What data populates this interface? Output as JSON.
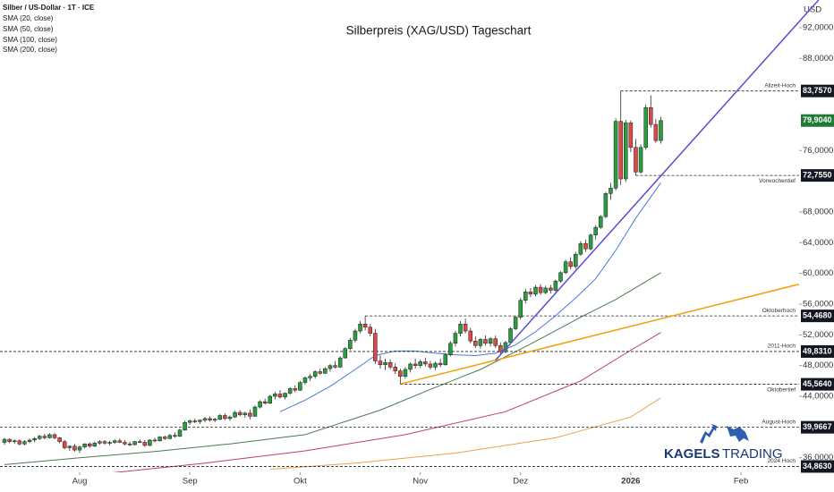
{
  "chart_data": {
    "type": "candlestick",
    "header": "Silber / US-Dollar · 1T · ICE",
    "title": "Silberpreis (XAG/USD) Tageschart",
    "currency": "USD",
    "logo": [
      "KAGELS",
      "TRADING"
    ],
    "colors": {
      "up": "#2a9d3f",
      "down": "#e04848",
      "wick": "#2b2b2b"
    },
    "xlim": [
      -0.9,
      158.6
    ],
    "ylim": [
      34.1,
      95.6
    ],
    "grid": false,
    "xticks": [
      {
        "value": 15,
        "label": "Aug"
      },
      {
        "value": 37,
        "label": "Sep"
      },
      {
        "value": 59,
        "label": "Okt"
      },
      {
        "value": 83,
        "label": "Nov"
      },
      {
        "value": 103,
        "label": "Dez"
      },
      {
        "value": 125,
        "label": "2026"
      },
      {
        "value": 147,
        "label": "Feb"
      }
    ],
    "yticks": [
      {
        "value": 92,
        "label": "92,0000"
      },
      {
        "value": 88,
        "label": "88,0000"
      },
      {
        "value": 76,
        "label": "76,0000"
      },
      {
        "value": 68,
        "label": "68,0000"
      },
      {
        "value": 64,
        "label": "64,0000"
      },
      {
        "value": 60,
        "label": "60,0000"
      },
      {
        "value": 56,
        "label": "56,0000"
      },
      {
        "value": 52,
        "label": "52,0000"
      },
      {
        "value": 48,
        "label": "48,0000"
      },
      {
        "value": 44,
        "label": "44,0000"
      },
      {
        "value": 36,
        "label": "36,0000"
      }
    ],
    "ohlc": [
      [
        38.0,
        38.6,
        37.7,
        38.4
      ],
      [
        38.4,
        38.5,
        37.9,
        38.1
      ],
      [
        38.1,
        38.4,
        37.8,
        38.2
      ],
      [
        38.2,
        38.4,
        37.6,
        37.8
      ],
      [
        37.8,
        38.3,
        37.6,
        38.1
      ],
      [
        38.1,
        38.5,
        37.9,
        38.3
      ],
      [
        38.3,
        38.7,
        38.0,
        38.5
      ],
      [
        38.5,
        39.0,
        38.3,
        38.8
      ],
      [
        38.8,
        39.1,
        38.4,
        38.6
      ],
      [
        38.6,
        39.2,
        38.5,
        39.0
      ],
      [
        39.0,
        39.2,
        38.4,
        38.6
      ],
      [
        38.6,
        38.7,
        37.9,
        38.1
      ],
      [
        38.1,
        38.3,
        37.1,
        37.3
      ],
      [
        37.3,
        37.6,
        36.9,
        37.5
      ],
      [
        37.5,
        37.8,
        36.8,
        37.0
      ],
      [
        37.0,
        37.6,
        36.6,
        37.4
      ],
      [
        37.4,
        37.9,
        37.2,
        37.8
      ],
      [
        37.8,
        38.0,
        37.3,
        37.5
      ],
      [
        37.5,
        38.1,
        37.4,
        37.9
      ],
      [
        37.9,
        38.3,
        37.7,
        38.1
      ],
      [
        38.1,
        38.3,
        37.7,
        37.9
      ],
      [
        37.9,
        38.2,
        37.6,
        38.0
      ],
      [
        38.0,
        38.4,
        37.8,
        38.2
      ],
      [
        38.2,
        38.5,
        37.9,
        38.0
      ],
      [
        38.0,
        38.3,
        37.6,
        37.8
      ],
      [
        37.8,
        38.1,
        37.5,
        37.7
      ],
      [
        37.7,
        38.2,
        37.6,
        38.1
      ],
      [
        38.1,
        38.4,
        37.9,
        38.0
      ],
      [
        38.0,
        38.3,
        37.4,
        37.6
      ],
      [
        37.6,
        38.4,
        37.5,
        38.3
      ],
      [
        38.3,
        38.6,
        38.0,
        38.2
      ],
      [
        38.2,
        38.8,
        38.1,
        38.7
      ],
      [
        38.7,
        38.9,
        38.3,
        38.5
      ],
      [
        38.5,
        39.1,
        38.4,
        38.9
      ],
      [
        38.9,
        39.3,
        38.6,
        38.8
      ],
      [
        38.8,
        39.8,
        38.7,
        39.6
      ],
      [
        39.6,
        40.8,
        39.5,
        40.6
      ],
      [
        40.6,
        41.0,
        40.3,
        40.8
      ],
      [
        40.8,
        41.1,
        40.5,
        40.7
      ],
      [
        40.7,
        41.0,
        40.4,
        40.9
      ],
      [
        40.9,
        41.3,
        40.6,
        41.1
      ],
      [
        41.1,
        41.4,
        40.7,
        40.9
      ],
      [
        40.9,
        41.2,
        40.6,
        41.0
      ],
      [
        41.0,
        41.7,
        40.9,
        41.5
      ],
      [
        41.5,
        41.8,
        40.9,
        41.1
      ],
      [
        41.1,
        41.5,
        40.8,
        41.3
      ],
      [
        41.3,
        42.1,
        41.2,
        41.9
      ],
      [
        41.9,
        42.2,
        41.4,
        41.6
      ],
      [
        41.6,
        42.0,
        41.2,
        41.8
      ],
      [
        41.8,
        42.3,
        41.0,
        41.4
      ],
      [
        41.4,
        42.8,
        41.3,
        42.6
      ],
      [
        42.6,
        43.5,
        42.4,
        43.3
      ],
      [
        43.3,
        43.7,
        42.9,
        43.1
      ],
      [
        43.1,
        44.2,
        43.0,
        44.0
      ],
      [
        44.0,
        44.6,
        43.6,
        44.3
      ],
      [
        44.3,
        44.8,
        43.7,
        43.9
      ],
      [
        43.9,
        44.5,
        43.6,
        44.4
      ],
      [
        44.4,
        45.2,
        44.2,
        45.0
      ],
      [
        45.0,
        45.4,
        44.5,
        44.8
      ],
      [
        44.8,
        46.0,
        44.7,
        45.8
      ],
      [
        45.8,
        46.6,
        45.5,
        46.4
      ],
      [
        46.4,
        46.9,
        46.0,
        46.6
      ],
      [
        46.6,
        47.4,
        46.3,
        47.2
      ],
      [
        47.2,
        47.6,
        46.8,
        47.0
      ],
      [
        47.0,
        47.8,
        46.9,
        47.6
      ],
      [
        47.6,
        48.2,
        47.2,
        48.0
      ],
      [
        48.0,
        48.6,
        47.6,
        47.8
      ],
      [
        47.8,
        49.2,
        47.7,
        49.0
      ],
      [
        49.0,
        50.4,
        48.9,
        50.2
      ],
      [
        50.2,
        51.6,
        50.0,
        51.3
      ],
      [
        51.3,
        52.8,
        51.0,
        52.5
      ],
      [
        52.5,
        53.8,
        52.2,
        53.4
      ],
      [
        53.4,
        54.468,
        52.6,
        53.0
      ],
      [
        53.0,
        53.4,
        51.8,
        52.2
      ],
      [
        52.2,
        52.8,
        48.2,
        48.6
      ],
      [
        48.6,
        49.3,
        47.6,
        48.1
      ],
      [
        48.1,
        48.9,
        47.4,
        48.4
      ],
      [
        48.4,
        48.8,
        47.5,
        47.8
      ],
      [
        47.8,
        48.3,
        46.9,
        47.3
      ],
      [
        47.3,
        47.6,
        45.564,
        46.6
      ],
      [
        46.6,
        47.8,
        46.3,
        47.5
      ],
      [
        47.5,
        48.4,
        47.1,
        48.2
      ],
      [
        48.2,
        48.9,
        47.6,
        48.0
      ],
      [
        48.0,
        48.8,
        47.7,
        48.5
      ],
      [
        48.5,
        49.0,
        47.9,
        48.2
      ],
      [
        48.2,
        48.6,
        47.5,
        47.8
      ],
      [
        47.8,
        48.5,
        47.4,
        48.3
      ],
      [
        48.3,
        48.9,
        47.8,
        48.1
      ],
      [
        48.1,
        49.6,
        48.0,
        49.4
      ],
      [
        49.4,
        51.2,
        49.2,
        50.9
      ],
      [
        50.9,
        52.5,
        50.5,
        52.2
      ],
      [
        52.2,
        53.8,
        51.8,
        53.4
      ],
      [
        53.4,
        54.1,
        52.2,
        52.5
      ],
      [
        52.5,
        52.9,
        50.9,
        51.2
      ],
      [
        51.2,
        51.8,
        50.3,
        50.6
      ],
      [
        50.6,
        51.6,
        50.2,
        51.4
      ],
      [
        51.4,
        51.9,
        50.6,
        50.9
      ],
      [
        50.9,
        51.7,
        50.5,
        51.5
      ],
      [
        51.5,
        51.9,
        50.3,
        50.6
      ],
      [
        50.6,
        51.0,
        49.3,
        49.8
      ],
      [
        49.8,
        51.2,
        49.6,
        51.0
      ],
      [
        51.0,
        53.0,
        50.8,
        52.8
      ],
      [
        52.8,
        54.5,
        52.6,
        54.3
      ],
      [
        54.3,
        56.8,
        54.0,
        56.5
      ],
      [
        56.5,
        58.0,
        56.1,
        57.6
      ],
      [
        57.6,
        58.1,
        56.9,
        57.3
      ],
      [
        57.3,
        58.5,
        57.0,
        58.2
      ],
      [
        58.2,
        58.6,
        57.2,
        57.5
      ],
      [
        57.5,
        58.4,
        57.3,
        58.1
      ],
      [
        58.1,
        58.5,
        57.4,
        57.8
      ],
      [
        57.8,
        59.2,
        57.6,
        59.0
      ],
      [
        59.0,
        60.3,
        58.8,
        60.1
      ],
      [
        60.1,
        61.8,
        59.9,
        61.5
      ],
      [
        61.5,
        62.1,
        60.5,
        60.9
      ],
      [
        60.9,
        62.8,
        60.6,
        62.5
      ],
      [
        62.5,
        64.2,
        62.3,
        63.9
      ],
      [
        63.9,
        64.4,
        62.8,
        63.2
      ],
      [
        63.2,
        65.2,
        63.0,
        65.0
      ],
      [
        65.0,
        66.3,
        64.4,
        66.0
      ],
      [
        66.0,
        67.6,
        65.8,
        67.4
      ],
      [
        67.4,
        70.6,
        67.2,
        70.4
      ],
      [
        70.4,
        71.8,
        69.6,
        71.1
      ],
      [
        71.1,
        80.2,
        70.8,
        79.8
      ],
      [
        79.8,
        83.757,
        71.5,
        72.3
      ],
      [
        72.3,
        80.0,
        71.9,
        79.6
      ],
      [
        79.6,
        79.9,
        75.8,
        76.4
      ],
      [
        76.4,
        77.5,
        72.755,
        73.2
      ],
      [
        73.2,
        76.8,
        73.0,
        76.4
      ],
      [
        76.4,
        82.0,
        76.1,
        81.6
      ],
      [
        81.6,
        83.2,
        79.0,
        79.4
      ],
      [
        79.4,
        80.1,
        77.0,
        77.3
      ],
      [
        77.3,
        80.4,
        76.9,
        79.904
      ]
    ],
    "series": [
      {
        "name": "SMA (20, close)",
        "color": "#4a78d8",
        "x": [
          55,
          60,
          65,
          70,
          74,
          78,
          82,
          86,
          90,
          94,
          98,
          102,
          106,
          110,
          114,
          118,
          122,
          126,
          131
        ],
        "values": [
          42.0,
          43.5,
          45.3,
          47.5,
          49.3,
          49.9,
          49.9,
          49.6,
          49.4,
          49.3,
          49.6,
          50.7,
          52.4,
          54.5,
          56.8,
          59.3,
          63.0,
          67.2,
          71.8
        ]
      },
      {
        "name": "SMA (50, close)",
        "color": "#4d7a4d",
        "x": [
          0,
          15,
          30,
          45,
          60,
          75,
          85,
          95,
          105,
          115,
          122,
          131
        ],
        "values": [
          35.1,
          36.0,
          36.8,
          37.8,
          39.0,
          42.2,
          44.9,
          47.5,
          50.8,
          54.3,
          56.6,
          60.1
        ]
      },
      {
        "name": "SMA (100, close)",
        "color": "#c0405a",
        "x": [
          18,
          40,
          60,
          80,
          100,
          115,
          125,
          131
        ],
        "values": [
          33.8,
          35.3,
          36.9,
          39.0,
          42.0,
          46.0,
          50.0,
          52.3
        ]
      },
      {
        "name": "SMA (200, close)",
        "color": "#f0a050",
        "x": [
          53,
          70,
          90,
          110,
          125,
          131
        ],
        "values": [
          34.5,
          35.3,
          36.6,
          38.6,
          41.3,
          43.8
        ]
      }
    ],
    "trendlines": [
      {
        "color": "#5c4bd0",
        "x": [
          98,
          162.5
        ],
        "values": [
          48.7,
          95.6
        ]
      },
      {
        "color": "#f2a000",
        "x": [
          79,
          158.6
        ],
        "values": [
          45.6,
          58.6
        ]
      }
    ],
    "levels": [
      {
        "value": 83.757,
        "label": "83,7570",
        "name": "Allzeit-Hoch",
        "from": 123
      },
      {
        "value": 72.755,
        "label": "72,7550",
        "name": "Vorwochentief",
        "from": 126
      },
      {
        "value": 54.468,
        "label": "54,4680",
        "name": "Oktoberhoch",
        "from": 72
      },
      {
        "value": 49.831,
        "label": "49,8310",
        "name": "2011-Hoch",
        "from": -0.9
      },
      {
        "value": 45.564,
        "label": "45,5640",
        "name": "Oktobertief",
        "from": 79
      },
      {
        "value": 39.9667,
        "label": "39,9667",
        "name": "August-Hoch",
        "from": -0.9
      },
      {
        "value": 34.863,
        "label": "34,8630",
        "name": "2024 Hoch",
        "from": -0.9
      }
    ],
    "last_price": {
      "value": 79.904,
      "label": "79,9040",
      "color": "#1f7a35"
    }
  }
}
